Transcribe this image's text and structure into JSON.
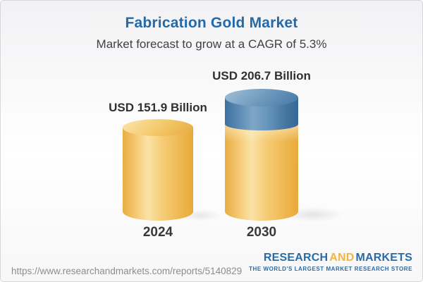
{
  "title": "Fabrication Gold Market",
  "subtitle": "Market forecast to grow at a CAGR of 5.3%",
  "chart_data": {
    "type": "bar",
    "title": "Fabrication Gold Market",
    "subtitle": "Market forecast to grow at a CAGR of 5.3%",
    "unit": "USD Billion",
    "cagr_percent": 5.3,
    "categories": [
      "2024",
      "2030"
    ],
    "values": [
      151.9,
      206.7
    ],
    "bars": [
      {
        "category": "2024",
        "value": 151.9,
        "value_label": "USD 151.9 Billion",
        "segments": [
          {
            "name": "base-market",
            "value": 151.9,
            "color": "#f2bc55"
          }
        ]
      },
      {
        "category": "2030",
        "value": 206.7,
        "value_label": "USD 206.7 Billion",
        "segments": [
          {
            "name": "base-market",
            "value": 151.9,
            "color": "#f2bc55"
          },
          {
            "name": "forecast-growth",
            "value": 54.8,
            "color": "#4a7ba8"
          }
        ]
      }
    ],
    "colors": {
      "gold": "#f2bc55",
      "blue": "#4a7ba8"
    },
    "legend_position": "none",
    "grid": false,
    "axes_visible": false
  },
  "footer": {
    "report_url": "https://www.researchandmarkets.com/reports/5140829",
    "logo": {
      "word_research": "RESEARCH",
      "word_and": "AND",
      "word_markets": "MARKETS",
      "tagline": "THE WORLD'S LARGEST MARKET RESEARCH STORE",
      "blue": "#2a6ba6",
      "gold": "#f0b63f"
    }
  }
}
